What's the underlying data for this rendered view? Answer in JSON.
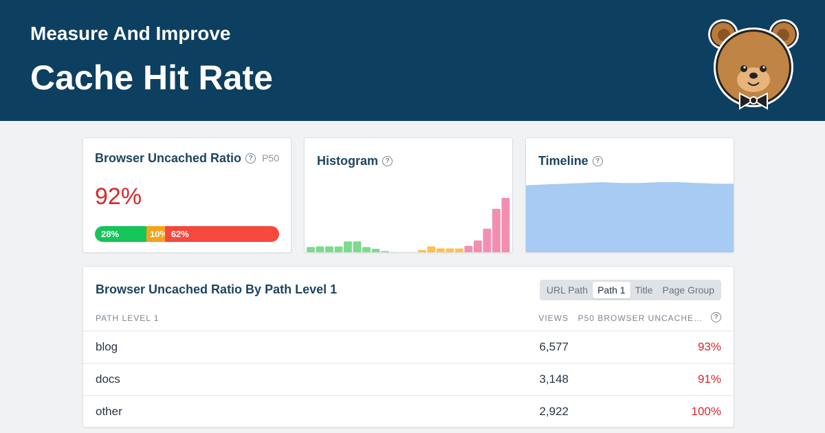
{
  "hero": {
    "subtitle": "Measure And Improve",
    "title": "Cache Hit Rate",
    "logo_icon": "bear-with-bowtie-icon"
  },
  "ratio_card": {
    "title": "Browser Uncached Ratio",
    "percentile": "P50",
    "value": "92%",
    "distribution": [
      {
        "label": "28%",
        "fraction": 0.28,
        "status": "good",
        "color": "#17c45a"
      },
      {
        "label": "10%",
        "fraction": 0.1,
        "status": "needs-improvement",
        "color": "#f7a21b"
      },
      {
        "label": "62%",
        "fraction": 0.62,
        "status": "poor",
        "color": "#f6483c"
      }
    ]
  },
  "histogram_card": {
    "title": "Histogram"
  },
  "timeline_card": {
    "title": "Timeline"
  },
  "chart_data": [
    {
      "type": "bar",
      "values": [
        2,
        2.2,
        2.2,
        2.2,
        3.9,
        3.9,
        2,
        1.4,
        0.6,
        0.3,
        0.3,
        0.3,
        1,
        2.2,
        1.5,
        1.5,
        1.5,
        2.4,
        4.2,
        8.2,
        14.9,
        18.6
      ],
      "colors": [
        "#7edb8c",
        "#7edb8c",
        "#7edb8c",
        "#7edb8c",
        "#7edb8c",
        "#7edb8c",
        "#7edb8c",
        "#7edb8c",
        "#7edb8c",
        "#7edb8c",
        "#ffc04d",
        "#ffc04d",
        "#ffc04d",
        "#ffc04d",
        "#ffc04d",
        "#ffc04d",
        "#ffc04d",
        "#f28fb0",
        "#f28fb0",
        "#f28fb0",
        "#f28fb0",
        "#f28fb0"
      ]
    },
    {
      "type": "area",
      "values": [
        0.88,
        0.89,
        0.9,
        0.91,
        0.92,
        0.91,
        0.91,
        0.92,
        0.92,
        0.91,
        0.9,
        0.9
      ],
      "ylim": [
        0,
        1
      ],
      "color": "#a7cbf2"
    }
  ],
  "table_card": {
    "title": "Browser Uncached Ratio By Path Level 1",
    "tabs": [
      {
        "label": "URL Path",
        "active": false
      },
      {
        "label": "Path 1",
        "active": true
      },
      {
        "label": "Title",
        "active": false
      },
      {
        "label": "Page Group",
        "active": false
      }
    ],
    "columns": {
      "path": "Path Level 1",
      "views": "Views",
      "ratio": "P50 Browser Uncache…"
    },
    "rows": [
      {
        "path": "blog",
        "views": "6,577",
        "ratio": "93%"
      },
      {
        "path": "docs",
        "views": "3,148",
        "ratio": "91%"
      },
      {
        "path": "other",
        "views": "2,922",
        "ratio": "100%"
      }
    ]
  }
}
